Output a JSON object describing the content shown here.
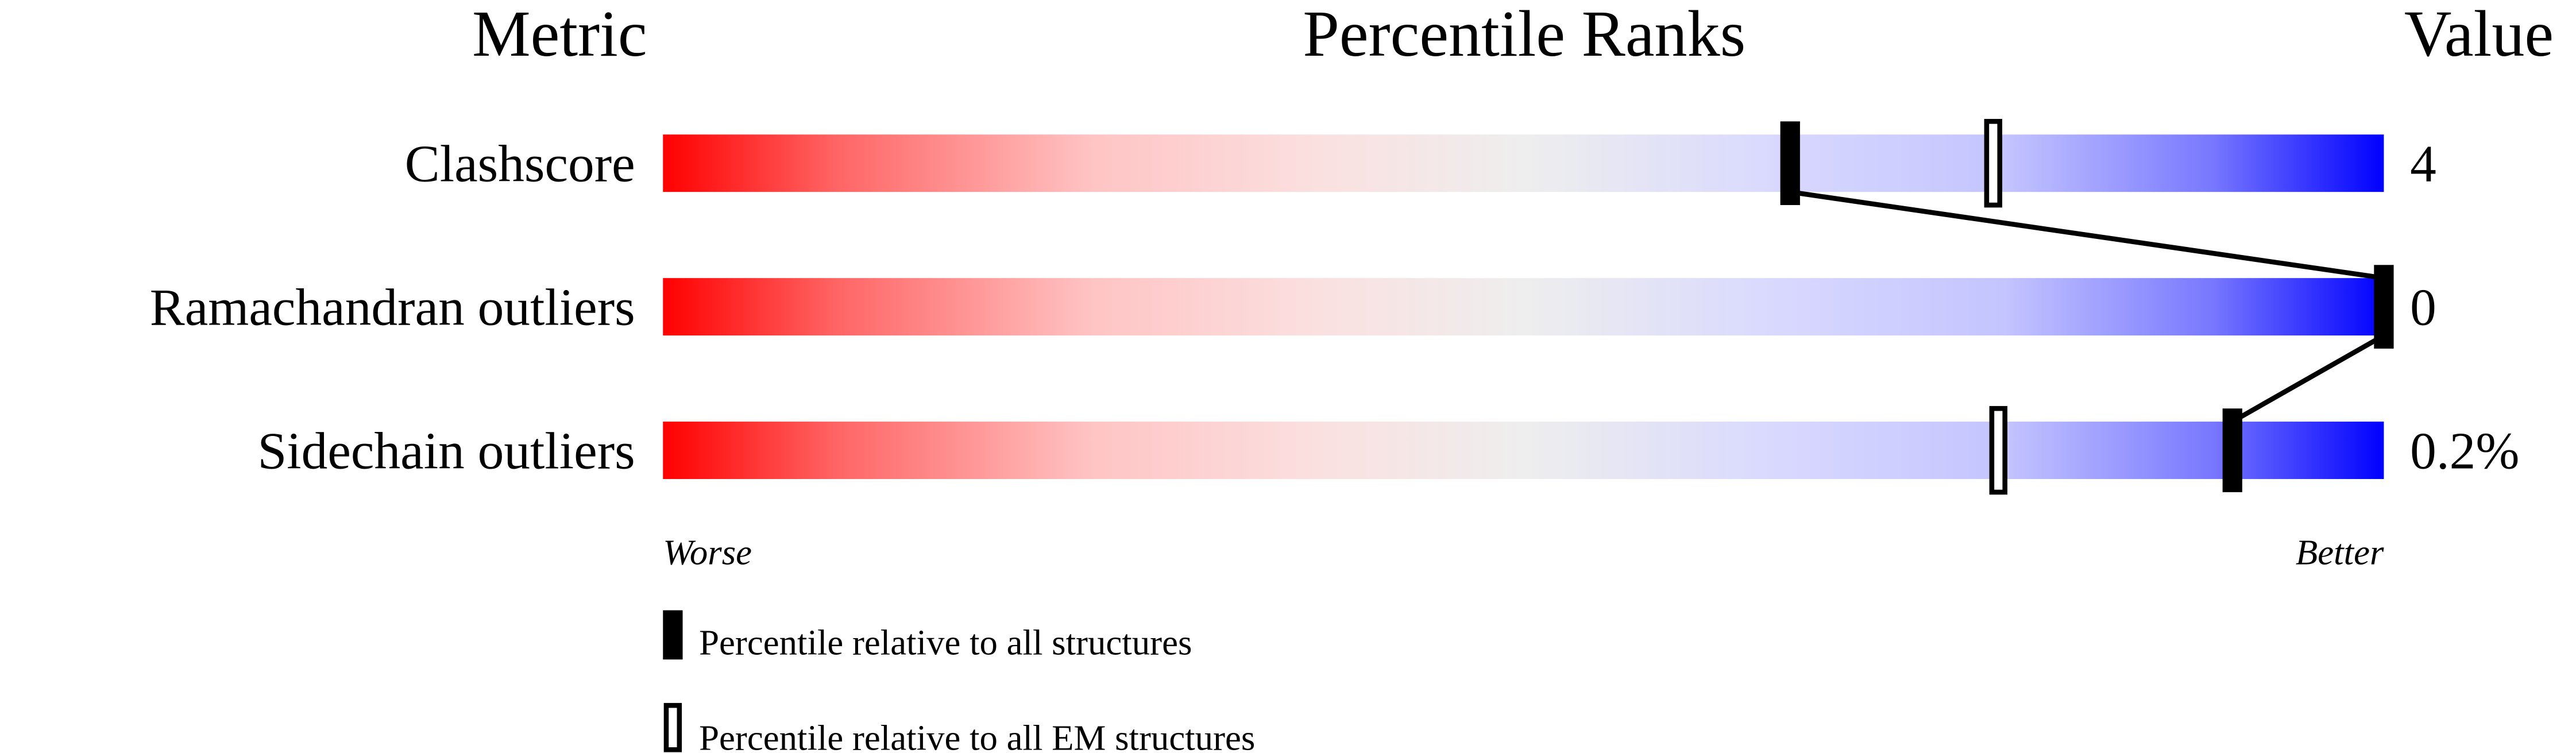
{
  "chart_data": {
    "type": "bar",
    "headers": {
      "metric": "Metric",
      "percentile": "Percentile Ranks",
      "value": "Value"
    },
    "xlim": [
      0,
      100
    ],
    "axis_labels": {
      "left": "Worse",
      "right": "Better"
    },
    "rows": [
      {
        "metric": "Clashscore",
        "value": "4",
        "percentile_all": 65.5,
        "percentile_em": 77.3
      },
      {
        "metric": "Ramachandran outliers",
        "value": "0",
        "percentile_all": 100,
        "percentile_em": null
      },
      {
        "metric": "Sidechain outliers",
        "value": "0.2%",
        "percentile_all": 91.2,
        "percentile_em": 77.6
      }
    ],
    "legend": [
      {
        "marker": "filled",
        "label": "Percentile relative to all structures"
      },
      {
        "marker": "hollow",
        "label": "Percentile relative to all EM structures"
      }
    ],
    "colors": {
      "worse": "#ff0000",
      "middle": "#eeeeee",
      "better": "#0000ff",
      "marker": "#000000"
    }
  }
}
